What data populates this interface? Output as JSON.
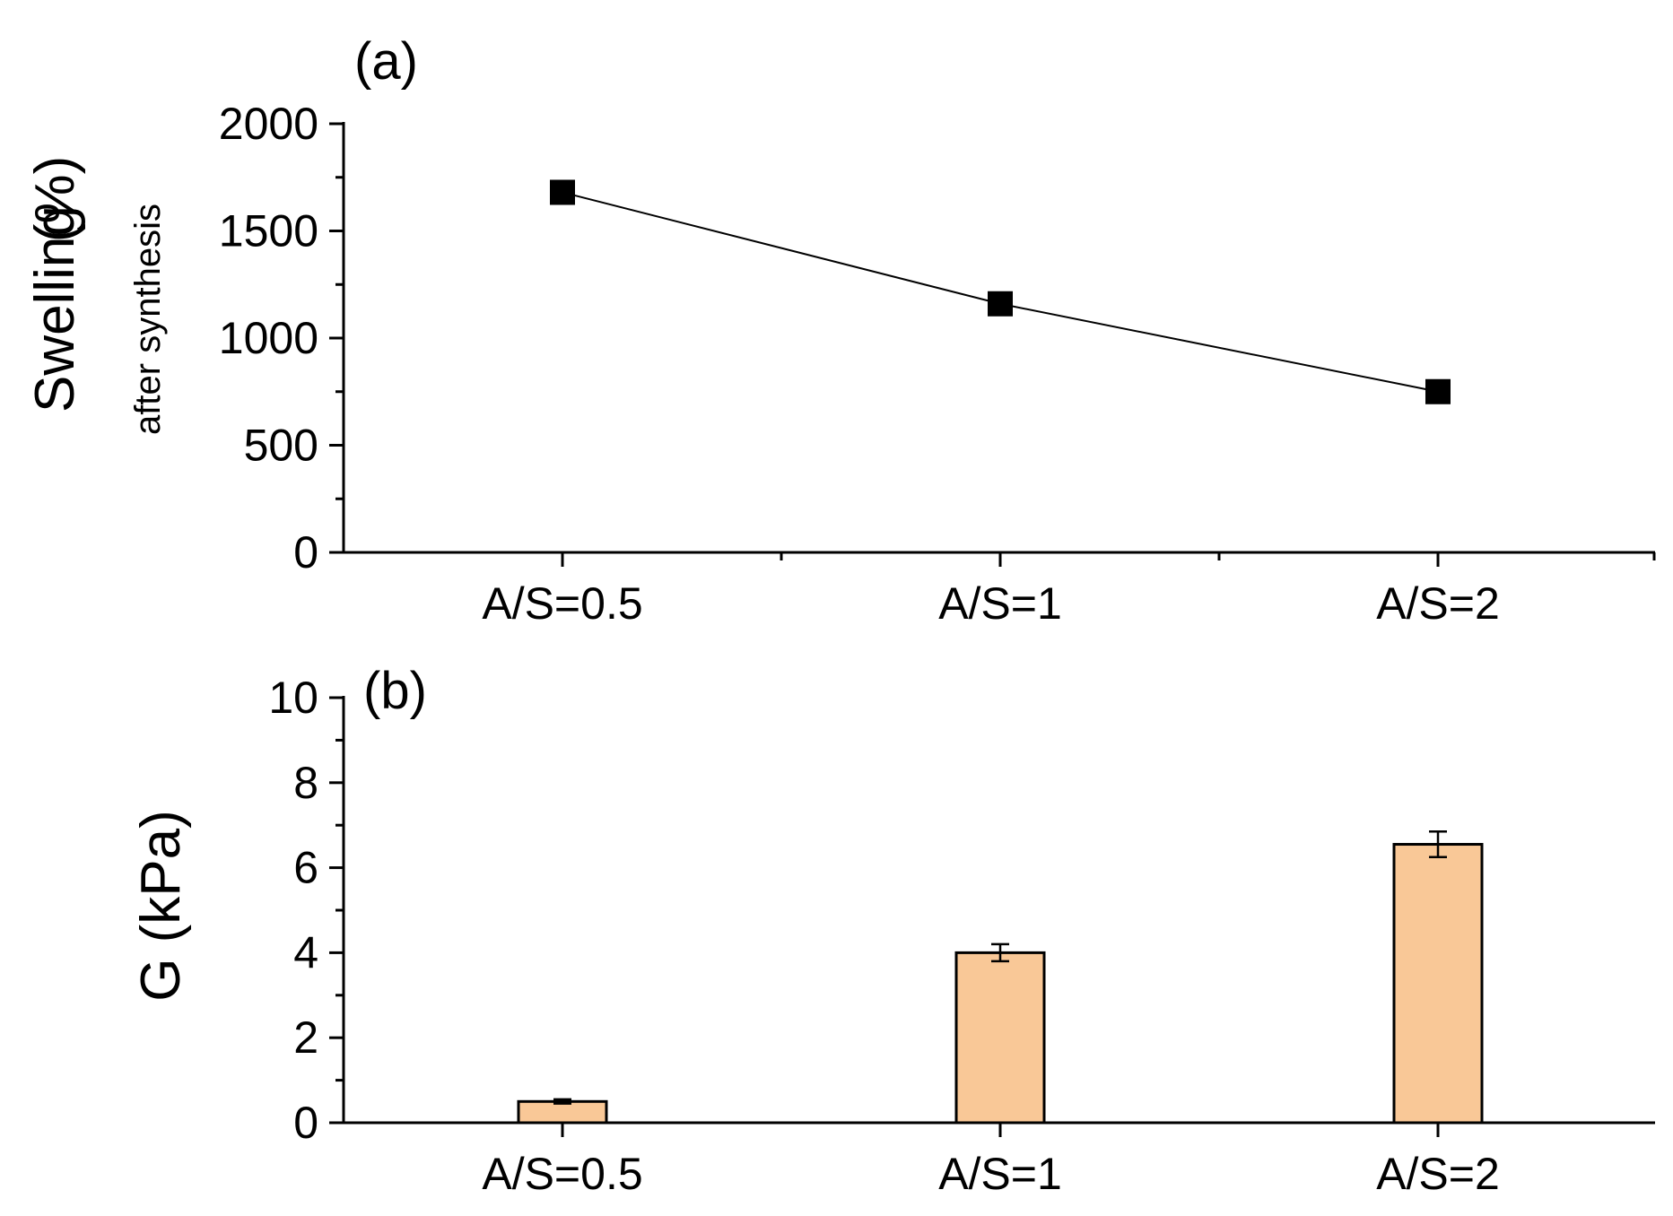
{
  "chart_data": [
    {
      "panel": "(a)",
      "type": "line",
      "categories": [
        "A/S=0.5",
        "A/S=1",
        "A/S=2"
      ],
      "series": [
        {
          "name": "Swelling after synthesis",
          "values": [
            1680,
            1160,
            750
          ],
          "marker": "square",
          "color": "#000000"
        }
      ],
      "ylabel": "Swelling",
      "ylabel_unit": "(%)",
      "ylabel_sub": "after synthesis",
      "ylim": [
        0,
        2000
      ],
      "yticks": [
        0,
        500,
        1000,
        1500,
        2000
      ],
      "yticklabels": [
        "0",
        "500",
        "1000",
        "1500",
        "2000"
      ]
    },
    {
      "panel": "(b)",
      "type": "bar",
      "categories": [
        "A/S=0.5",
        "A/S=1",
        "A/S=2"
      ],
      "series": [
        {
          "name": "G",
          "values": [
            0.5,
            4.0,
            6.55
          ],
          "errors": [
            0.05,
            0.2,
            0.3
          ],
          "color": "#f9c897"
        }
      ],
      "ylabel": "G (kPa)",
      "ylim": [
        0,
        10
      ],
      "yticks": [
        0,
        2,
        4,
        6,
        8,
        10
      ],
      "yticklabels": [
        "0",
        "2",
        "4",
        "6",
        "8",
        "10"
      ]
    }
  ]
}
